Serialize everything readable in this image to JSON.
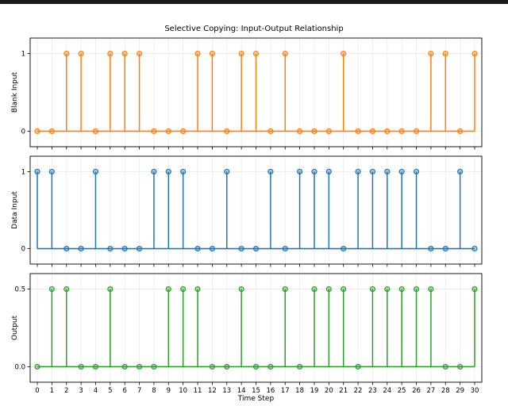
{
  "chart_data": {
    "type": "stem",
    "title": "Selective Copying: Input-Output Relationship",
    "xlabel": "Time Step",
    "x": [
      0,
      1,
      2,
      3,
      4,
      5,
      6,
      7,
      8,
      9,
      10,
      11,
      12,
      13,
      14,
      15,
      16,
      17,
      18,
      19,
      20,
      21,
      22,
      23,
      24,
      25,
      26,
      27,
      28,
      29,
      30
    ],
    "xticks": [
      "0",
      "1",
      "2",
      "3",
      "4",
      "5",
      "6",
      "7",
      "8",
      "9",
      "10",
      "11",
      "12",
      "13",
      "14",
      "15",
      "16",
      "17",
      "18",
      "19",
      "20",
      "21",
      "22",
      "23",
      "24",
      "25",
      "26",
      "27",
      "28",
      "29",
      "30"
    ],
    "grid": true,
    "panels": [
      {
        "name": "Blank Input",
        "ylabel": "Blank Input",
        "color": "#ff7f0e",
        "yticks": [
          "0",
          "1"
        ],
        "ytick_values": [
          0,
          1
        ],
        "ylim": [
          -0.2,
          1.2
        ],
        "values": [
          0,
          0,
          1,
          1,
          0,
          1,
          1,
          1,
          0,
          0,
          0,
          1,
          1,
          0,
          1,
          1,
          0,
          1,
          0,
          0,
          0,
          1,
          0,
          0,
          0,
          0,
          0,
          1,
          1,
          0,
          1
        ]
      },
      {
        "name": "Data Input",
        "ylabel": "Data Input",
        "color": "#1f77b4",
        "yticks": [
          "0",
          "1"
        ],
        "ytick_values": [
          0,
          1
        ],
        "ylim": [
          -0.2,
          1.2
        ],
        "values": [
          1,
          1,
          0,
          0,
          1,
          0,
          0,
          0,
          1,
          1,
          1,
          0,
          0,
          1,
          0,
          0,
          1,
          0,
          1,
          1,
          1,
          0,
          1,
          1,
          1,
          1,
          1,
          0,
          0,
          1,
          0
        ]
      },
      {
        "name": "Output",
        "ylabel": "Output",
        "color": "#2ca02c",
        "yticks": [
          "0.0",
          "0.5"
        ],
        "ytick_values": [
          0,
          0.5
        ],
        "ylim": [
          -0.1,
          0.6
        ],
        "values": [
          0,
          0.5,
          0.5,
          0,
          0,
          0.5,
          0,
          0,
          0,
          0.5,
          0.5,
          0.5,
          0,
          0,
          0.5,
          0,
          0,
          0.5,
          0,
          0.5,
          0.5,
          0.5,
          0,
          0.5,
          0.5,
          0.5,
          0.5,
          0.5,
          0,
          0,
          0.5
        ]
      }
    ]
  }
}
